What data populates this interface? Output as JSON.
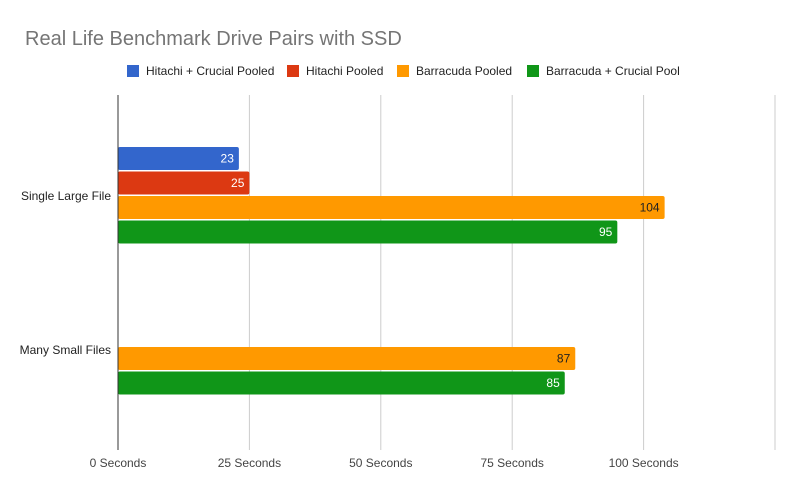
{
  "chart_data": {
    "type": "bar",
    "orientation": "horizontal",
    "title": "Real Life Benchmark Drive Pairs with SSD",
    "xlabel": "",
    "ylabel": "",
    "categories": [
      "Single Large File",
      "Many Small Files"
    ],
    "series": [
      {
        "name": "Hitachi + Crucial Pooled",
        "color": "#3366cc",
        "label_color": "#ffffff",
        "values": [
          23,
          null
        ]
      },
      {
        "name": "Hitachi Pooled",
        "color": "#dc3912",
        "label_color": "#ffffff",
        "values": [
          25,
          null
        ]
      },
      {
        "name": "Barracuda Pooled",
        "color": "#ff9900",
        "label_color": "#222222",
        "values": [
          104,
          87
        ]
      },
      {
        "name": "Barracuda + Crucial Pool",
        "color": "#109618",
        "label_color": "#ffffff",
        "values": [
          95,
          85
        ]
      }
    ],
    "xlim": [
      0,
      125
    ],
    "x_ticks": [
      0,
      25,
      50,
      75,
      100,
      125
    ],
    "x_tick_labels": [
      "0 Seconds",
      "25 Seconds",
      "50 Seconds",
      "75 Seconds",
      "100 Seconds",
      ""
    ],
    "grid": true,
    "legend_position": "top"
  }
}
